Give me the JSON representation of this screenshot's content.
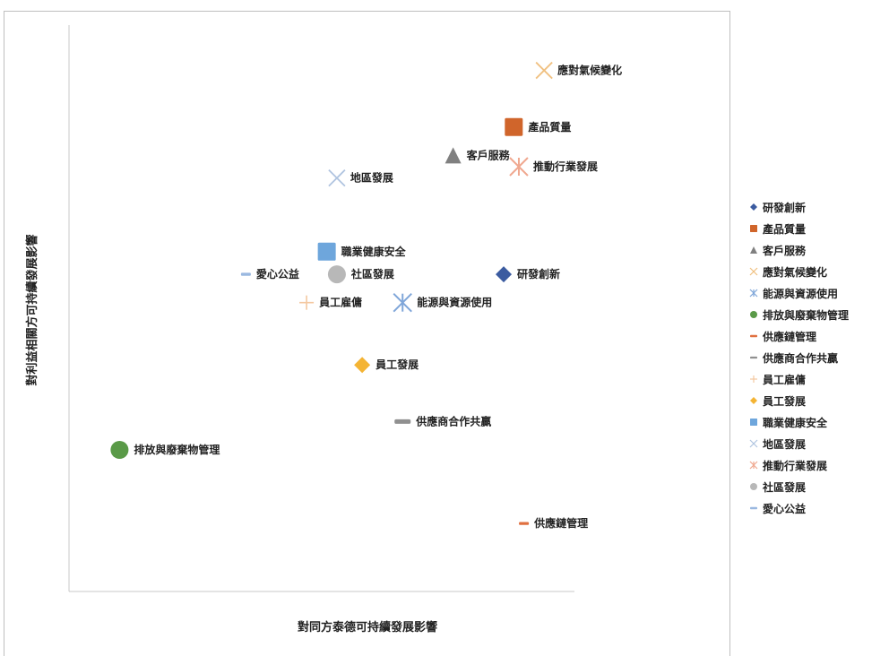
{
  "chart_data": {
    "type": "scatter",
    "title": "",
    "xlabel": "對同方泰德可持續發展影響",
    "ylabel": "對利益相關方可持續發展影響",
    "xlim": [
      0,
      10
    ],
    "ylim": [
      0,
      10
    ],
    "grid": false,
    "legend_position": "right",
    "series": [
      {
        "name": "研發創新",
        "x": 8.6,
        "y": 5.6,
        "marker": "diamond",
        "color": "#3b5ba0"
      },
      {
        "name": "產品質量",
        "x": 8.8,
        "y": 8.2,
        "marker": "square",
        "color": "#d0652b"
      },
      {
        "name": "客戶服務",
        "x": 7.6,
        "y": 7.7,
        "marker": "triangle",
        "color": "#808080"
      },
      {
        "name": "應對氣候變化",
        "x": 9.4,
        "y": 9.2,
        "marker": "x",
        "color": "#f0c080"
      },
      {
        "name": "能源與資源使用",
        "x": 6.6,
        "y": 5.1,
        "marker": "star",
        "color": "#7fa6d9"
      },
      {
        "name": "排放與廢棄物管理",
        "x": 1.0,
        "y": 2.5,
        "marker": "circle",
        "color": "#5a9a48"
      },
      {
        "name": "供應鏈管理",
        "x": 9.0,
        "y": 1.2,
        "marker": "dash",
        "color": "#e07040"
      },
      {
        "name": "供應商合作共贏",
        "x": 6.6,
        "y": 3.0,
        "marker": "bar",
        "color": "#909090"
      },
      {
        "name": "員工雇傭",
        "x": 4.7,
        "y": 5.1,
        "marker": "plus",
        "color": "#f4c8a0"
      },
      {
        "name": "員工發展",
        "x": 5.8,
        "y": 4.0,
        "marker": "diamond",
        "color": "#f4b434"
      },
      {
        "name": "職業健康安全",
        "x": 5.1,
        "y": 6.0,
        "marker": "square",
        "color": "#6ea6dc"
      },
      {
        "name": "地區發展",
        "x": 5.3,
        "y": 7.3,
        "marker": "x",
        "color": "#b0c4e0"
      },
      {
        "name": "推動行業發展",
        "x": 8.9,
        "y": 7.5,
        "marker": "star",
        "color": "#f0a890"
      },
      {
        "name": "社區發展",
        "x": 5.3,
        "y": 5.6,
        "marker": "circle",
        "color": "#b8b8b8"
      },
      {
        "name": "愛心公益",
        "x": 3.5,
        "y": 5.6,
        "marker": "dash",
        "color": "#9ab8e0"
      }
    ]
  }
}
